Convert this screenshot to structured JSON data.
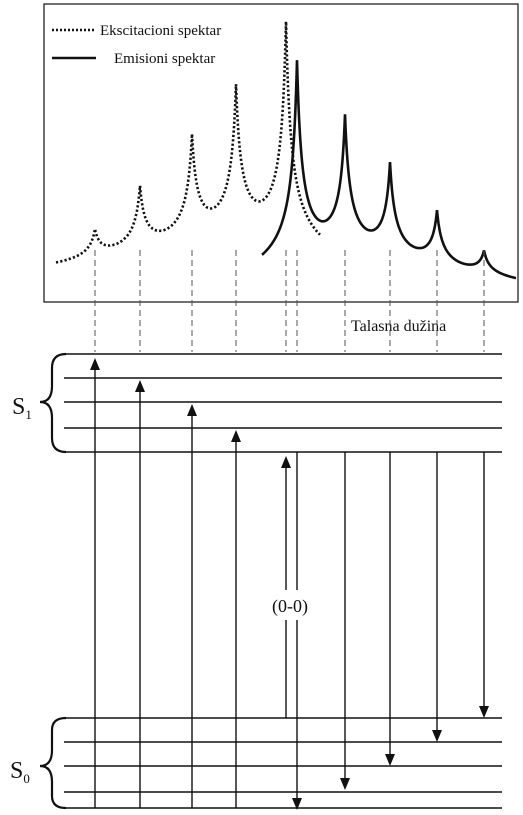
{
  "legend": {
    "excitation": "Ekscitacioni spektar",
    "emission": "Emisioni spektar"
  },
  "axis_label": "Talasna dužina",
  "levels": {
    "s1": {
      "letter": "S",
      "subscript": "1"
    },
    "s0": {
      "letter": "S",
      "subscript": "0"
    }
  },
  "transition_label": "(0-0)",
  "colors": {
    "ink": "#111111",
    "guide": "#555555",
    "background": "#ffffff"
  }
}
